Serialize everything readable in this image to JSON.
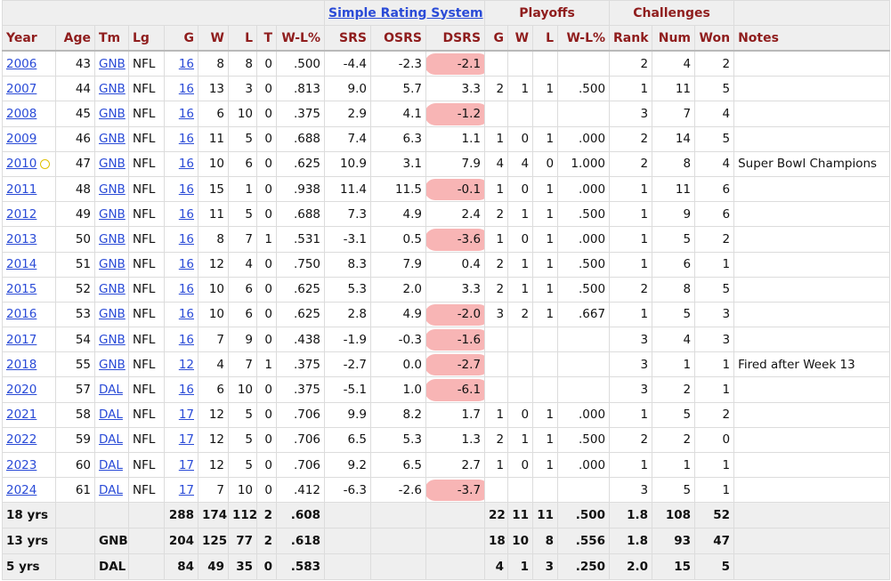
{
  "overheader": {
    "srs_link": "Simple Rating System",
    "playoffs": "Playoffs",
    "challenges": "Challenges"
  },
  "headers": [
    "Year",
    "Age",
    "Tm",
    "Lg",
    "G",
    "W",
    "L",
    "T",
    "W-L%",
    "SRS",
    "OSRS",
    "DSRS",
    "G",
    "W",
    "L",
    "W-L%",
    "Rank",
    "Num",
    "Won",
    "Notes"
  ],
  "rows": [
    {
      "year": "2006",
      "age": "43",
      "tm": "GNB",
      "lg": "NFL",
      "g": "16",
      "w": "8",
      "l": "8",
      "t": "0",
      "wl": ".500",
      "srs": "-4.4",
      "osrs": "-2.3",
      "dsrs": "-2.1",
      "hl": true,
      "pg": "",
      "pw": "",
      "pl": "",
      "pwl": "",
      "rank": "2",
      "num": "4",
      "won": "2",
      "notes": ""
    },
    {
      "year": "2007",
      "age": "44",
      "tm": "GNB",
      "lg": "NFL",
      "g": "16",
      "w": "13",
      "l": "3",
      "t": "0",
      "wl": ".813",
      "srs": "9.0",
      "osrs": "5.7",
      "dsrs": "3.3",
      "hl": false,
      "pg": "2",
      "pw": "1",
      "pl": "1",
      "pwl": ".500",
      "rank": "1",
      "num": "11",
      "won": "5",
      "notes": ""
    },
    {
      "year": "2008",
      "age": "45",
      "tm": "GNB",
      "lg": "NFL",
      "g": "16",
      "w": "6",
      "l": "10",
      "t": "0",
      "wl": ".375",
      "srs": "2.9",
      "osrs": "4.1",
      "dsrs": "-1.2",
      "hl": true,
      "pg": "",
      "pw": "",
      "pl": "",
      "pwl": "",
      "rank": "3",
      "num": "7",
      "won": "4",
      "notes": ""
    },
    {
      "year": "2009",
      "age": "46",
      "tm": "GNB",
      "lg": "NFL",
      "g": "16",
      "w": "11",
      "l": "5",
      "t": "0",
      "wl": ".688",
      "srs": "7.4",
      "osrs": "6.3",
      "dsrs": "1.1",
      "hl": false,
      "pg": "1",
      "pw": "0",
      "pl": "1",
      "pwl": ".000",
      "rank": "2",
      "num": "14",
      "won": "5",
      "notes": ""
    },
    {
      "year": "2010",
      "age": "47",
      "tm": "GNB",
      "lg": "NFL",
      "g": "16",
      "w": "10",
      "l": "6",
      "t": "0",
      "wl": ".625",
      "srs": "10.9",
      "osrs": "3.1",
      "dsrs": "7.9",
      "hl": false,
      "pg": "4",
      "pw": "4",
      "pl": "0",
      "pwl": "1.000",
      "rank": "2",
      "num": "8",
      "won": "4",
      "notes": "Super Bowl Champions",
      "cup": true
    },
    {
      "year": "2011",
      "age": "48",
      "tm": "GNB",
      "lg": "NFL",
      "g": "16",
      "w": "15",
      "l": "1",
      "t": "0",
      "wl": ".938",
      "srs": "11.4",
      "osrs": "11.5",
      "dsrs": "-0.1",
      "hl": true,
      "pg": "1",
      "pw": "0",
      "pl": "1",
      "pwl": ".000",
      "rank": "1",
      "num": "11",
      "won": "6",
      "notes": ""
    },
    {
      "year": "2012",
      "age": "49",
      "tm": "GNB",
      "lg": "NFL",
      "g": "16",
      "w": "11",
      "l": "5",
      "t": "0",
      "wl": ".688",
      "srs": "7.3",
      "osrs": "4.9",
      "dsrs": "2.4",
      "hl": false,
      "pg": "2",
      "pw": "1",
      "pl": "1",
      "pwl": ".500",
      "rank": "1",
      "num": "9",
      "won": "6",
      "notes": ""
    },
    {
      "year": "2013",
      "age": "50",
      "tm": "GNB",
      "lg": "NFL",
      "g": "16",
      "w": "8",
      "l": "7",
      "t": "1",
      "wl": ".531",
      "srs": "-3.1",
      "osrs": "0.5",
      "dsrs": "-3.6",
      "hl": true,
      "pg": "1",
      "pw": "0",
      "pl": "1",
      "pwl": ".000",
      "rank": "1",
      "num": "5",
      "won": "2",
      "notes": ""
    },
    {
      "year": "2014",
      "age": "51",
      "tm": "GNB",
      "lg": "NFL",
      "g": "16",
      "w": "12",
      "l": "4",
      "t": "0",
      "wl": ".750",
      "srs": "8.3",
      "osrs": "7.9",
      "dsrs": "0.4",
      "hl": false,
      "pg": "2",
      "pw": "1",
      "pl": "1",
      "pwl": ".500",
      "rank": "1",
      "num": "6",
      "won": "1",
      "notes": ""
    },
    {
      "year": "2015",
      "age": "52",
      "tm": "GNB",
      "lg": "NFL",
      "g": "16",
      "w": "10",
      "l": "6",
      "t": "0",
      "wl": ".625",
      "srs": "5.3",
      "osrs": "2.0",
      "dsrs": "3.3",
      "hl": false,
      "pg": "2",
      "pw": "1",
      "pl": "1",
      "pwl": ".500",
      "rank": "2",
      "num": "8",
      "won": "5",
      "notes": ""
    },
    {
      "year": "2016",
      "age": "53",
      "tm": "GNB",
      "lg": "NFL",
      "g": "16",
      "w": "10",
      "l": "6",
      "t": "0",
      "wl": ".625",
      "srs": "2.8",
      "osrs": "4.9",
      "dsrs": "-2.0",
      "hl": true,
      "pg": "3",
      "pw": "2",
      "pl": "1",
      "pwl": ".667",
      "rank": "1",
      "num": "5",
      "won": "3",
      "notes": ""
    },
    {
      "year": "2017",
      "age": "54",
      "tm": "GNB",
      "lg": "NFL",
      "g": "16",
      "w": "7",
      "l": "9",
      "t": "0",
      "wl": ".438",
      "srs": "-1.9",
      "osrs": "-0.3",
      "dsrs": "-1.6",
      "hl": true,
      "pg": "",
      "pw": "",
      "pl": "",
      "pwl": "",
      "rank": "3",
      "num": "4",
      "won": "3",
      "notes": ""
    },
    {
      "year": "2018",
      "age": "55",
      "tm": "GNB",
      "lg": "NFL",
      "g": "12",
      "w": "4",
      "l": "7",
      "t": "1",
      "wl": ".375",
      "srs": "-2.7",
      "osrs": "0.0",
      "dsrs": "-2.7",
      "hl": true,
      "pg": "",
      "pw": "",
      "pl": "",
      "pwl": "",
      "rank": "3",
      "num": "1",
      "won": "1",
      "notes": "Fired after Week 13"
    },
    {
      "year": "2020",
      "age": "57",
      "tm": "DAL",
      "lg": "NFL",
      "g": "16",
      "w": "6",
      "l": "10",
      "t": "0",
      "wl": ".375",
      "srs": "-5.1",
      "osrs": "1.0",
      "dsrs": "-6.1",
      "hl": true,
      "pg": "",
      "pw": "",
      "pl": "",
      "pwl": "",
      "rank": "3",
      "num": "2",
      "won": "1",
      "notes": ""
    },
    {
      "year": "2021",
      "age": "58",
      "tm": "DAL",
      "lg": "NFL",
      "g": "17",
      "w": "12",
      "l": "5",
      "t": "0",
      "wl": ".706",
      "srs": "9.9",
      "osrs": "8.2",
      "dsrs": "1.7",
      "hl": false,
      "pg": "1",
      "pw": "0",
      "pl": "1",
      "pwl": ".000",
      "rank": "1",
      "num": "5",
      "won": "2",
      "notes": ""
    },
    {
      "year": "2022",
      "age": "59",
      "tm": "DAL",
      "lg": "NFL",
      "g": "17",
      "w": "12",
      "l": "5",
      "t": "0",
      "wl": ".706",
      "srs": "6.5",
      "osrs": "5.3",
      "dsrs": "1.3",
      "hl": false,
      "pg": "2",
      "pw": "1",
      "pl": "1",
      "pwl": ".500",
      "rank": "2",
      "num": "2",
      "won": "0",
      "notes": ""
    },
    {
      "year": "2023",
      "age": "60",
      "tm": "DAL",
      "lg": "NFL",
      "g": "17",
      "w": "12",
      "l": "5",
      "t": "0",
      "wl": ".706",
      "srs": "9.2",
      "osrs": "6.5",
      "dsrs": "2.7",
      "hl": false,
      "pg": "1",
      "pw": "0",
      "pl": "1",
      "pwl": ".000",
      "rank": "1",
      "num": "1",
      "won": "1",
      "notes": ""
    },
    {
      "year": "2024",
      "age": "61",
      "tm": "DAL",
      "lg": "NFL",
      "g": "17",
      "w": "7",
      "l": "10",
      "t": "0",
      "wl": ".412",
      "srs": "-6.3",
      "osrs": "-2.6",
      "dsrs": "-3.7",
      "hl": true,
      "pg": "",
      "pw": "",
      "pl": "",
      "pwl": "",
      "rank": "3",
      "num": "5",
      "won": "1",
      "notes": ""
    }
  ],
  "totals": [
    {
      "label": "18 yrs",
      "tm": "",
      "g": "288",
      "w": "174",
      "l": "112",
      "t": "2",
      "wl": ".608",
      "pg": "22",
      "pw": "11",
      "pl": "11",
      "pwl": ".500",
      "rank": "1.8",
      "num": "108",
      "won": "52"
    },
    {
      "label": "13 yrs",
      "tm": "GNB",
      "g": "204",
      "w": "125",
      "l": "77",
      "t": "2",
      "wl": ".618",
      "pg": "18",
      "pw": "10",
      "pl": "8",
      "pwl": ".556",
      "rank": "1.8",
      "num": "93",
      "won": "47"
    },
    {
      "label": "5 yrs",
      "tm": "DAL",
      "g": "84",
      "w": "49",
      "l": "35",
      "t": "0",
      "wl": ".583",
      "pg": "4",
      "pw": "1",
      "pl": "3",
      "pwl": ".250",
      "rank": "2.0",
      "num": "15",
      "won": "5"
    }
  ],
  "colors": {
    "header_text": "#8f1d1d",
    "link": "#2a4bd7",
    "highlight": "#f27878",
    "header_bg": "#efefef"
  }
}
